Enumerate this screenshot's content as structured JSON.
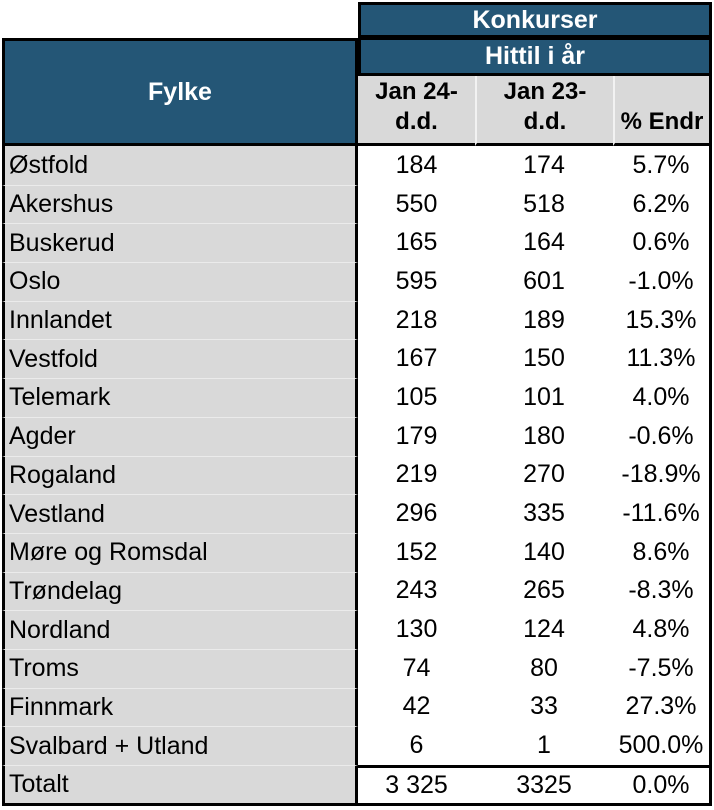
{
  "header": {
    "title": "Konkurser",
    "subtitle": "Hittil i år",
    "fylke_label": "Fylke",
    "col_jan24": "Jan 24-\nd.d.",
    "col_jan23": "Jan 23-\nd.d.",
    "col_endr": "% Endr"
  },
  "colors": {
    "header_blue": "#245676",
    "cell_gray": "#d9d9d9",
    "border_black": "#000000"
  },
  "chart_data": {
    "type": "table",
    "title": "Konkurser",
    "subtitle": "Hittil i år",
    "columns": [
      "Fylke",
      "Jan 24-d.d.",
      "Jan 23-d.d.",
      "% Endr"
    ],
    "rows": [
      [
        "Østfold",
        "184",
        "174",
        "5.7%"
      ],
      [
        "Akershus",
        "550",
        "518",
        "6.2%"
      ],
      [
        "Buskerud",
        "165",
        "164",
        "0.6%"
      ],
      [
        "Oslo",
        "595",
        "601",
        "-1.0%"
      ],
      [
        "Innlandet",
        "218",
        "189",
        "15.3%"
      ],
      [
        "Vestfold",
        "167",
        "150",
        "11.3%"
      ],
      [
        "Telemark",
        "105",
        "101",
        "4.0%"
      ],
      [
        "Agder",
        "179",
        "180",
        "-0.6%"
      ],
      [
        "Rogaland",
        "219",
        "270",
        "-18.9%"
      ],
      [
        "Vestland",
        "296",
        "335",
        "-11.6%"
      ],
      [
        "Møre og Romsdal",
        "152",
        "140",
        "8.6%"
      ],
      [
        "Trøndelag",
        "243",
        "265",
        "-8.3%"
      ],
      [
        "Nordland",
        "130",
        "124",
        "4.8%"
      ],
      [
        "Troms",
        "74",
        "80",
        "-7.5%"
      ],
      [
        "Finnmark",
        "42",
        "33",
        "27.3%"
      ],
      [
        "Svalbard + Utland",
        "6",
        "1",
        "500.0%"
      ]
    ],
    "total": [
      "Totalt",
      "3 325",
      "3325",
      "0.0%"
    ]
  }
}
